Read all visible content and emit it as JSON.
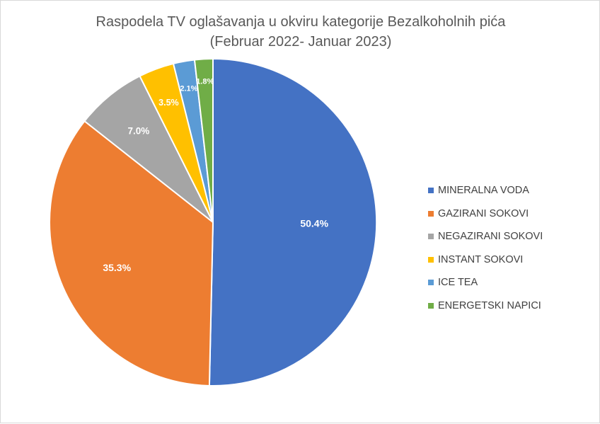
{
  "chart_data": {
    "type": "pie",
    "title": "Raspodela TV oglašavanja u okviru kategorije Bezalkoholnih pića",
    "subtitle": "(Februar 2022- Januar 2023)",
    "legend_position": "right",
    "slices": [
      {
        "label": "MINERALNA VODA",
        "value": 50.4,
        "display": "50.4%",
        "color": "#4472C4"
      },
      {
        "label": "GAZIRANI SOKOVI",
        "value": 35.3,
        "display": "35.3%",
        "color": "#ED7D31"
      },
      {
        "label": "NEGAZIRANI SOKOVI",
        "value": 7.0,
        "display": "7.0%",
        "color": "#A5A5A5"
      },
      {
        "label": "INSTANT SOKOVI",
        "value": 3.5,
        "display": "3.5%",
        "color": "#FFC000"
      },
      {
        "label": "ICE TEA",
        "value": 2.1,
        "display": "2.1%",
        "color": "#5B9BD5"
      },
      {
        "label": "ENERGETSKI NAPICI",
        "value": 1.8,
        "display": "1.8%",
        "color": "#70AD47"
      }
    ]
  }
}
